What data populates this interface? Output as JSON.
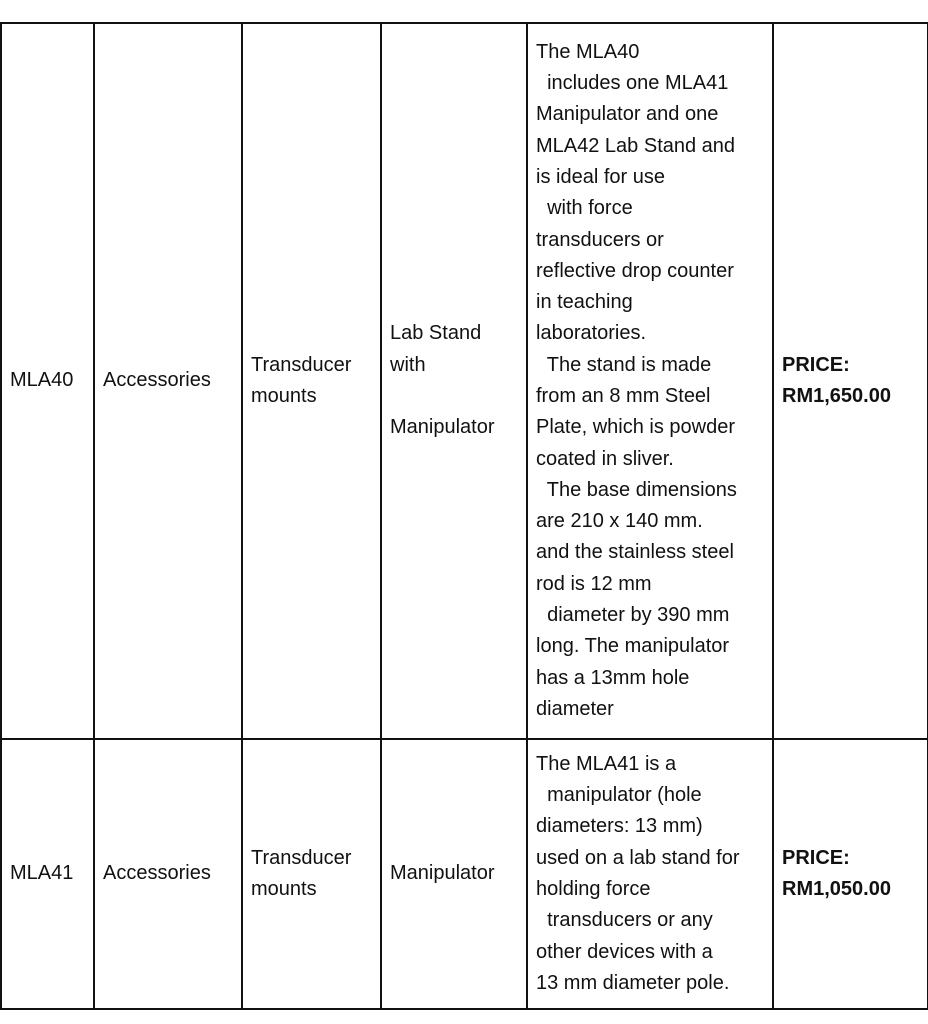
{
  "rows": [
    {
      "code": "MLA40",
      "category": "Accessories",
      "subcategory": "Transducer\nmounts",
      "name": "Lab Stand\nwith\n\nManipulator",
      "description": "The MLA40\n  includes one MLA41\nManipulator and one\nMLA42 Lab Stand and\nis ideal for use\n  with force\ntransducers or\nreflective drop counter\nin teaching\nlaboratories.\n  The stand is made\nfrom an 8 mm Steel\nPlate, which is powder\ncoated in sliver.\n  The base dimensions\nare 210 x 140 mm.\nand the stainless steel\nrod is 12 mm\n  diameter by 390 mm\nlong. The manipulator\nhas a 13mm hole\ndiameter",
      "price": "PRICE:\nRM1,650.00"
    },
    {
      "code": "MLA41",
      "category": "Accessories",
      "subcategory": "Transducer\nmounts",
      "name": "Manipulator",
      "description": "The MLA41 is a\n  manipulator (hole\ndiameters: 13 mm)\nused on a lab stand for\nholding force\n  transducers or any\nother devices with a\n13 mm diameter pole.",
      "price": "PRICE:\nRM1,050.00"
    }
  ]
}
